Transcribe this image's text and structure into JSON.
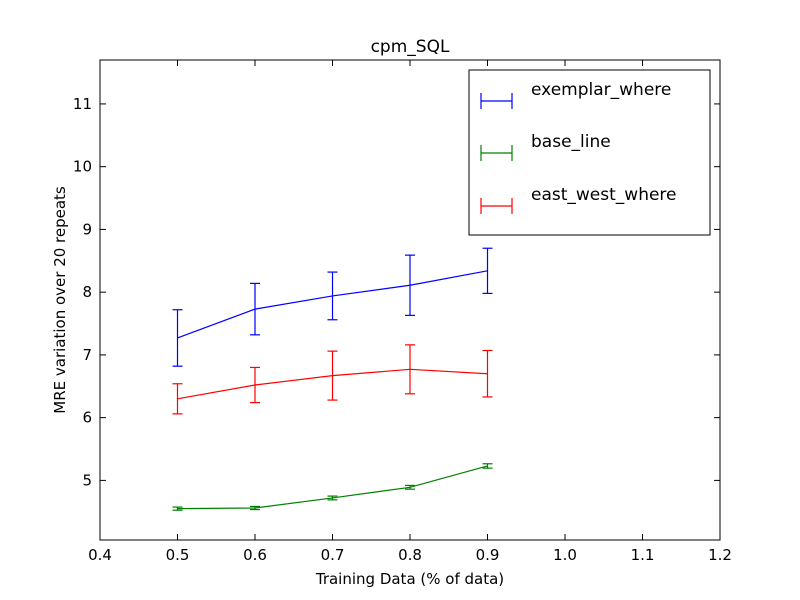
{
  "chart_data": {
    "type": "line",
    "title": "cpm_SQL",
    "xlabel": "Training Data (% of data)",
    "ylabel": "MRE variation over 20 repeats",
    "xlim": [
      0.4,
      1.2
    ],
    "ylim": [
      4.05,
      11.7
    ],
    "xticks": [
      0.4,
      0.5,
      0.6,
      0.7,
      0.8,
      0.9,
      1.0,
      1.1,
      1.2
    ],
    "xtick_labels": [
      "0.4",
      "0.5",
      "0.6",
      "0.7",
      "0.8",
      "0.9",
      "1.0",
      "1.1",
      "1.2"
    ],
    "yticks": [
      5,
      6,
      7,
      8,
      9,
      10,
      11
    ],
    "ytick_labels": [
      "5",
      "6",
      "7",
      "8",
      "9",
      "10",
      "11"
    ],
    "grid": false,
    "legend_position": "top-right",
    "x": [
      0.5,
      0.6,
      0.7,
      0.8,
      0.9
    ],
    "series": [
      {
        "name": "exemplar_where",
        "color": "#0000ff",
        "values": [
          7.27,
          7.73,
          7.94,
          8.11,
          8.34
        ],
        "errors": [
          0.45,
          0.41,
          0.38,
          0.48,
          0.36
        ]
      },
      {
        "name": "base_line",
        "color": "#008000",
        "values": [
          4.55,
          4.56,
          4.72,
          4.89,
          5.23
        ],
        "errors": [
          0.025,
          0.025,
          0.03,
          0.03,
          0.035
        ]
      },
      {
        "name": "east_west_where",
        "color": "#ff0000",
        "values": [
          6.3,
          6.52,
          6.67,
          6.77,
          6.7
        ],
        "errors": [
          0.24,
          0.28,
          0.39,
          0.39,
          0.37
        ]
      }
    ]
  }
}
